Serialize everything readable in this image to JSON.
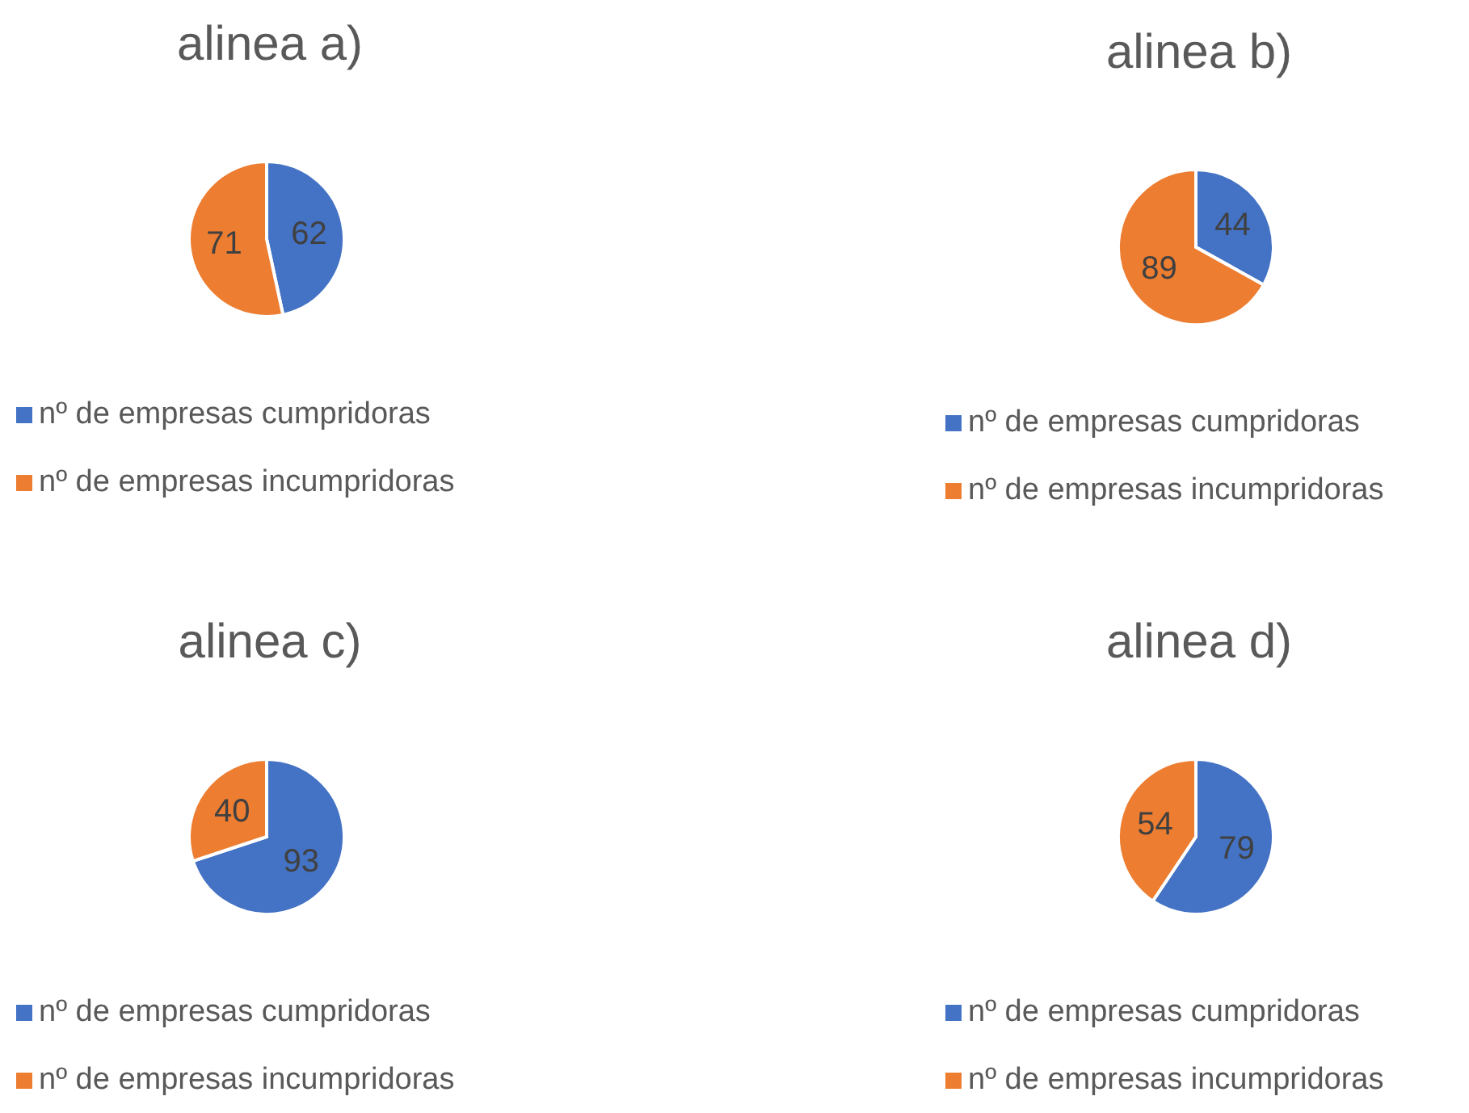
{
  "chart_data": [
    {
      "type": "pie",
      "title": "alinea a)",
      "categories": [
        "nº de empresas cumpridoras",
        "nº de empresas incumpridoras"
      ],
      "values": [
        62,
        71
      ],
      "colors": [
        "#4472c4",
        "#ed7d31"
      ],
      "data_labels": true,
      "legend": "bottom left"
    },
    {
      "type": "pie",
      "title": "alinea b)",
      "categories": [
        "nº de empresas cumpridoras",
        "nº de empresas incumpridoras"
      ],
      "values": [
        44,
        89
      ],
      "colors": [
        "#4472c4",
        "#ed7d31"
      ],
      "data_labels": true,
      "legend": "bottom left"
    },
    {
      "type": "pie",
      "title": "alinea c)",
      "categories": [
        "nº de empresas cumpridoras",
        "nº de empresas incumpridoras"
      ],
      "values": [
        93,
        40
      ],
      "colors": [
        "#4472c4",
        "#ed7d31"
      ],
      "data_labels": true,
      "legend": "bottom left"
    },
    {
      "type": "pie",
      "title": "alinea d)",
      "categories": [
        "nº de empresas cumpridoras",
        "nº de empresas incumpridoras"
      ],
      "values": [
        79,
        54
      ],
      "colors": [
        "#4472c4",
        "#ed7d31"
      ],
      "data_labels": true,
      "legend": "bottom left"
    }
  ]
}
